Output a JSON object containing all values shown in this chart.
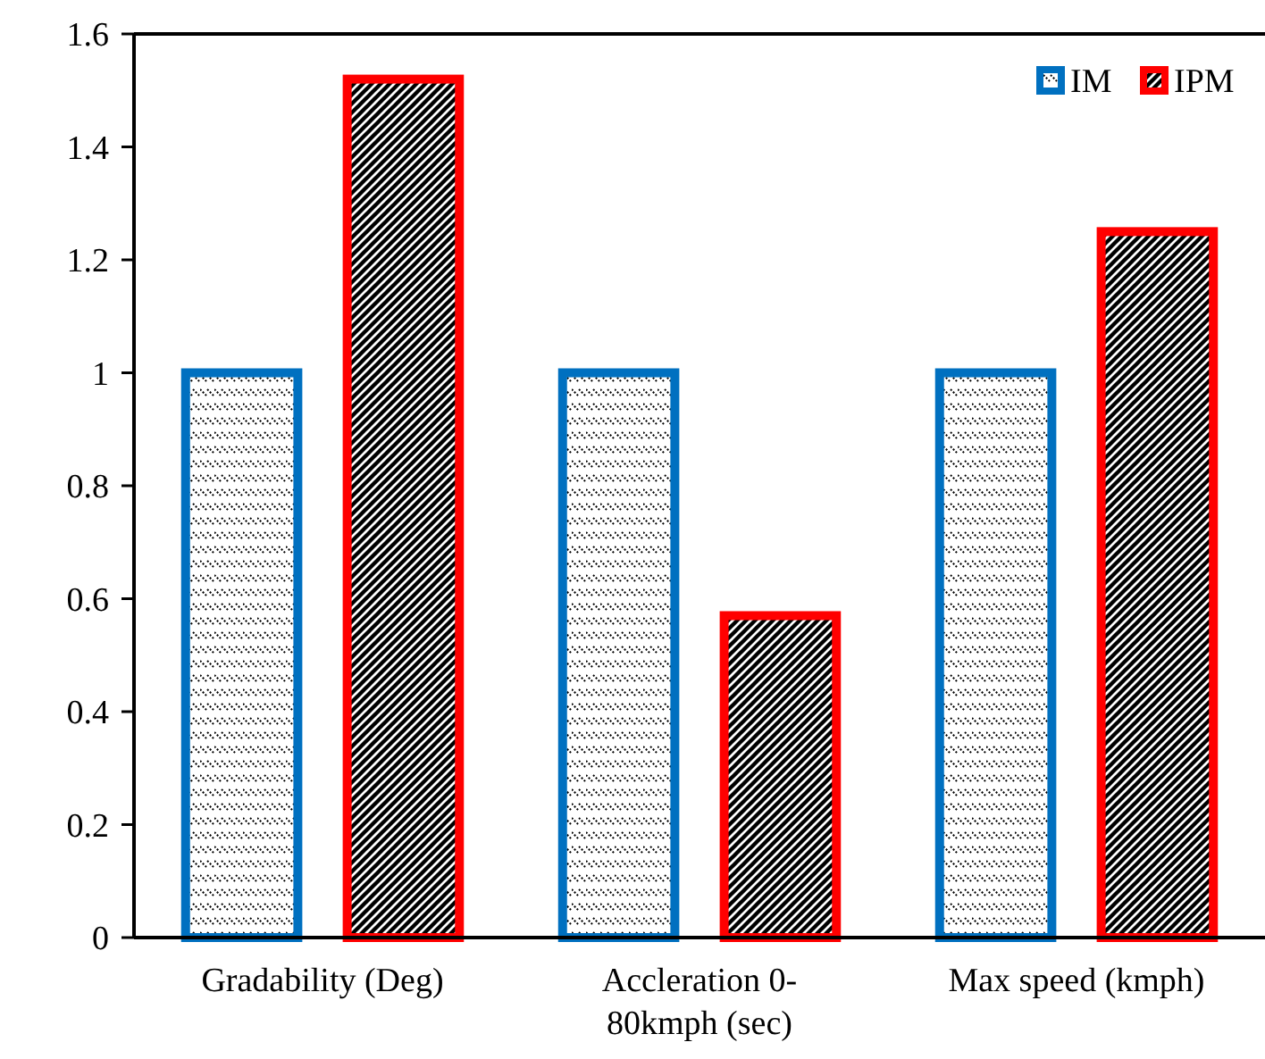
{
  "chart_data": {
    "type": "bar",
    "categories": [
      "Gradability (Deg)",
      "Accleration 0-80kmph (sec)",
      "Max speed (kmph)"
    ],
    "series": [
      {
        "name": "IM",
        "color": "#0070c0",
        "values": [
          1,
          1,
          1
        ]
      },
      {
        "name": "IPM",
        "color": "#ff0000",
        "values": [
          1.52,
          0.57,
          1.25
        ]
      }
    ],
    "ylim": [
      0,
      1.6
    ],
    "yticks": [
      0,
      0.2,
      0.4,
      0.6,
      0.8,
      1,
      1.2,
      1.4,
      1.6
    ],
    "grid": false,
    "legend": "top right"
  }
}
